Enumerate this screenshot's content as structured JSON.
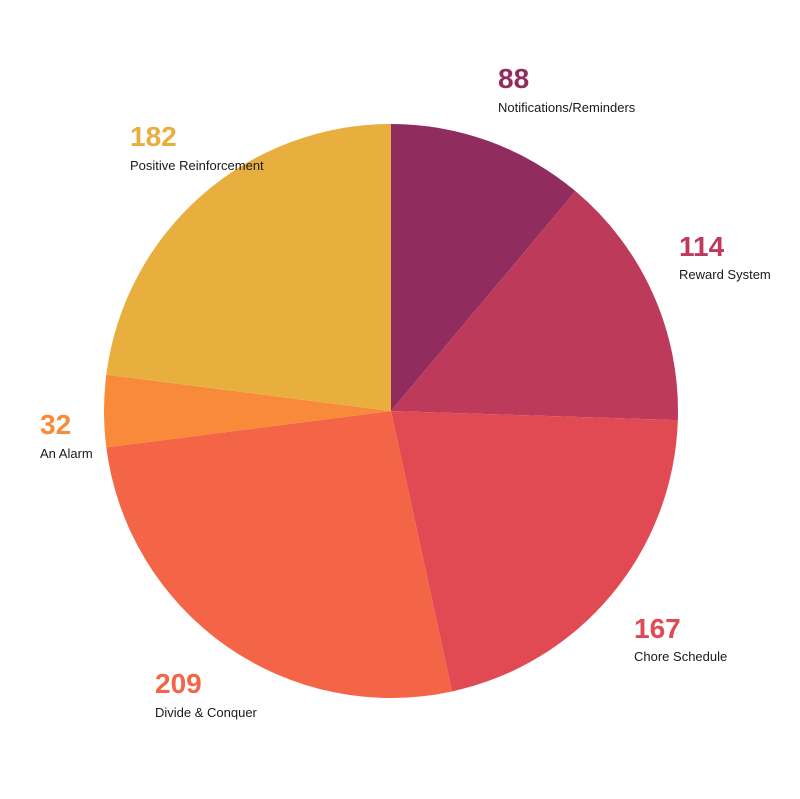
{
  "chart_data": {
    "type": "pie",
    "slices": [
      {
        "label": "Notifications/Reminders",
        "value": 88,
        "color": "#912D5E"
      },
      {
        "label": "Reward System",
        "value": 114,
        "color": "#BE3A5A"
      },
      {
        "label": "Chore Schedule",
        "value": 167,
        "color": "#E14A53"
      },
      {
        "label": "Divide & Conquer",
        "value": 209,
        "color": "#F46547"
      },
      {
        "label": "An Alarm",
        "value": 32,
        "color": "#F88B3A"
      },
      {
        "label": "Positive Reinforcement",
        "value": 182,
        "color": "#E8AF3E"
      }
    ],
    "start": "12 o'clock",
    "direction": "clockwise",
    "legend": "none"
  }
}
